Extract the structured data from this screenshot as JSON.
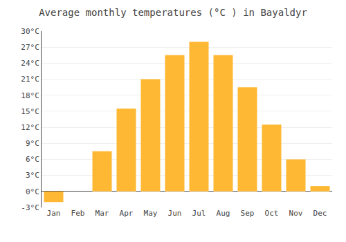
{
  "chart_data": {
    "type": "bar",
    "title": "Average monthly temperatures (°C ) in Bayaldyr",
    "categories": [
      "Jan",
      "Feb",
      "Mar",
      "Apr",
      "May",
      "Jun",
      "Jul",
      "Aug",
      "Sep",
      "Oct",
      "Nov",
      "Dec"
    ],
    "values": [
      -2,
      0,
      7.5,
      15.5,
      21,
      25.5,
      28,
      25.5,
      19.5,
      12.5,
      6,
      1
    ],
    "color": "#FFB833",
    "ylim": [
      -3,
      30
    ],
    "yticks": [
      {
        "value": -3,
        "label": "-3°C"
      },
      {
        "value": 0,
        "label": "0°C"
      },
      {
        "value": 3,
        "label": "3°C"
      },
      {
        "value": 6,
        "label": "6°C"
      },
      {
        "value": 9,
        "label": "9°C"
      },
      {
        "value": 12,
        "label": "12°C"
      },
      {
        "value": 15,
        "label": "15°C"
      },
      {
        "value": 18,
        "label": "18°C"
      },
      {
        "value": 21,
        "label": "21°C"
      },
      {
        "value": 24,
        "label": "24°C"
      },
      {
        "value": 27,
        "label": "27°C"
      },
      {
        "value": 30,
        "label": "30°C"
      }
    ],
    "grid": true
  }
}
